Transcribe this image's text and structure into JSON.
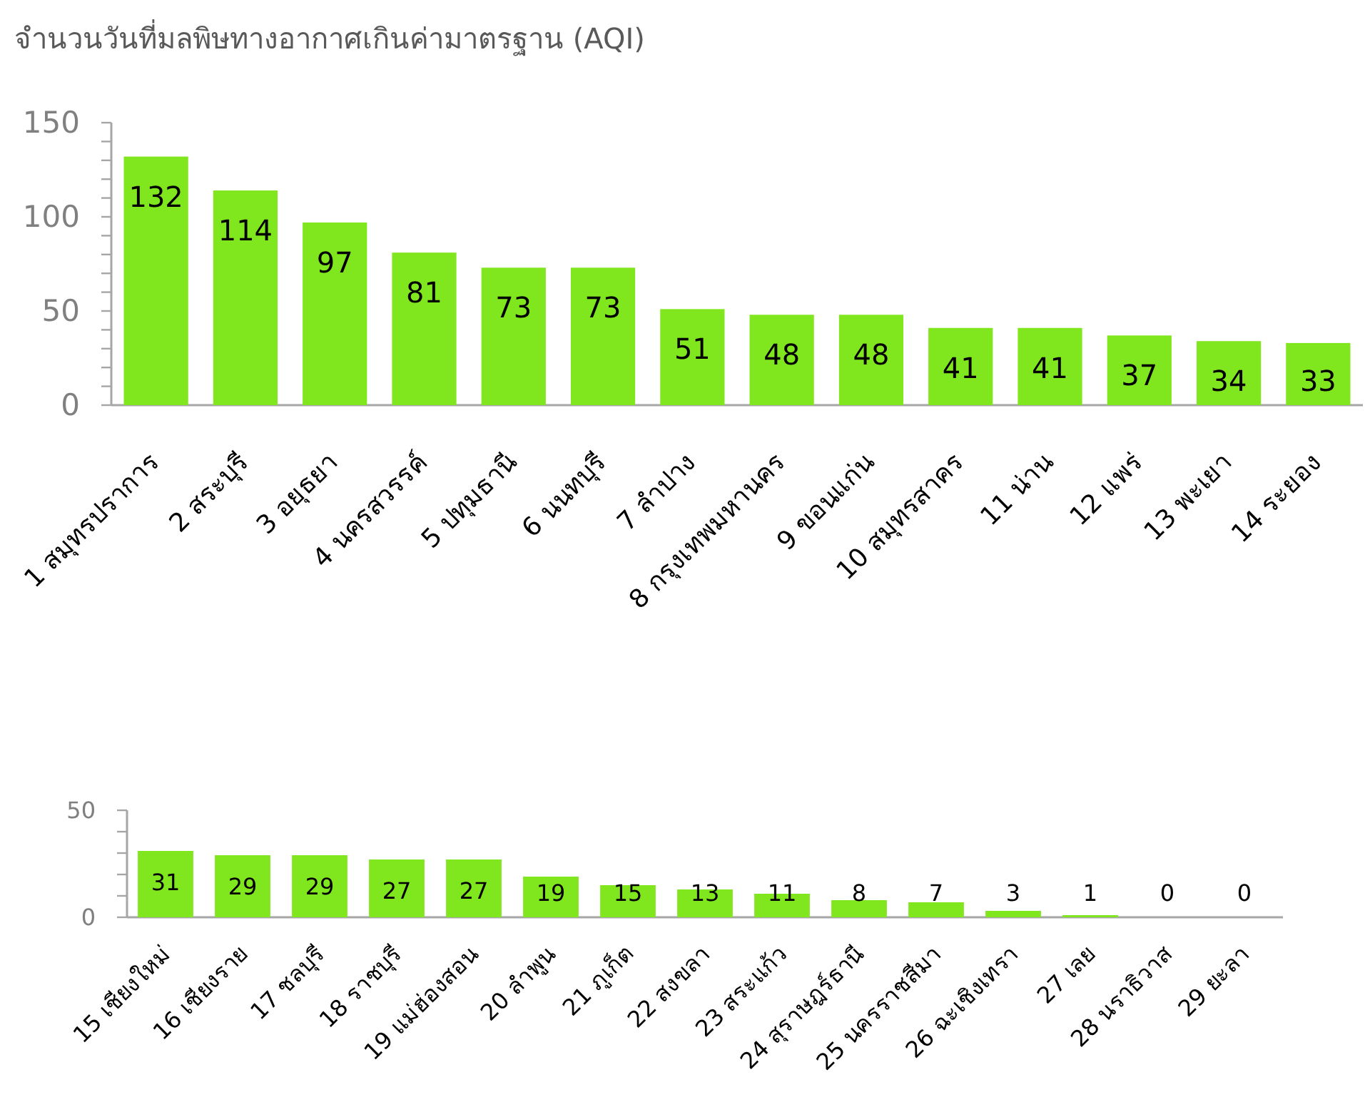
{
  "chart_data": [
    {
      "type": "bar",
      "title": "จำนวนวันที่มลพิษทางอากาศเกินค่ามาตรฐาน (AQI)",
      "categories": [
        "1 สมุทรปราการ",
        "2 สระบุรี",
        "3 อยุธยา",
        "4 นครสวรรค์",
        "5 ปทุมธานี",
        "6 นนทบุรี",
        "7 ลำปาง",
        "8 กรุงเทพมหานคร",
        "9 ขอนแก่น",
        "10 สมุทรสาคร",
        "11 น่าน",
        "12 แพร่",
        "13 พะเยา",
        "14 ระยอง"
      ],
      "values": [
        132,
        114,
        97,
        81,
        73,
        73,
        51,
        48,
        48,
        41,
        41,
        37,
        34,
        33
      ],
      "color": "#80e61e",
      "ylim": [
        0,
        150
      ],
      "yticks": [
        0,
        {
          "value": 10,
          "label": null
        },
        {
          "value": 20,
          "label": null
        },
        {
          "value": 30,
          "label": null
        },
        {
          "value": 40,
          "label": null
        },
        50,
        {
          "value": 60,
          "label": null
        },
        {
          "value": 70,
          "label": null
        },
        {
          "value": 80,
          "label": null
        },
        {
          "value": 90,
          "label": null
        },
        100,
        {
          "value": 110,
          "label": null
        },
        {
          "value": 120,
          "label": null
        },
        {
          "value": 130,
          "label": null
        },
        {
          "value": 140,
          "label": null
        },
        150
      ],
      "data_labels": true
    },
    {
      "type": "bar",
      "categories": [
        "15 เชียงใหม่",
        "16 เชียงราย",
        "17 ชลบุรี",
        "18 ราชบุรี",
        "19 แม่ฮ่องสอน",
        "20 ลำพูน",
        "21 ภูเก็ต",
        "22 สงขลา",
        "23 สระแก้ว",
        "24 สุราษฎร์ธานี",
        "25 นครราชสีมา",
        "26 ฉะเชิงเทรา",
        "27 เลย",
        "28 นราธิวาส",
        "29 ยะลา"
      ],
      "values": [
        31,
        29,
        29,
        27,
        27,
        19,
        15,
        13,
        11,
        8,
        7,
        3,
        1,
        0,
        0
      ],
      "color": "#80e61e",
      "ylim": [
        0,
        50
      ],
      "yticks": [
        0,
        {
          "value": 10,
          "label": null
        },
        {
          "value": 20,
          "label": null
        },
        {
          "value": 30,
          "label": null
        },
        {
          "value": 40,
          "label": null
        },
        50
      ],
      "data_labels": true
    }
  ]
}
